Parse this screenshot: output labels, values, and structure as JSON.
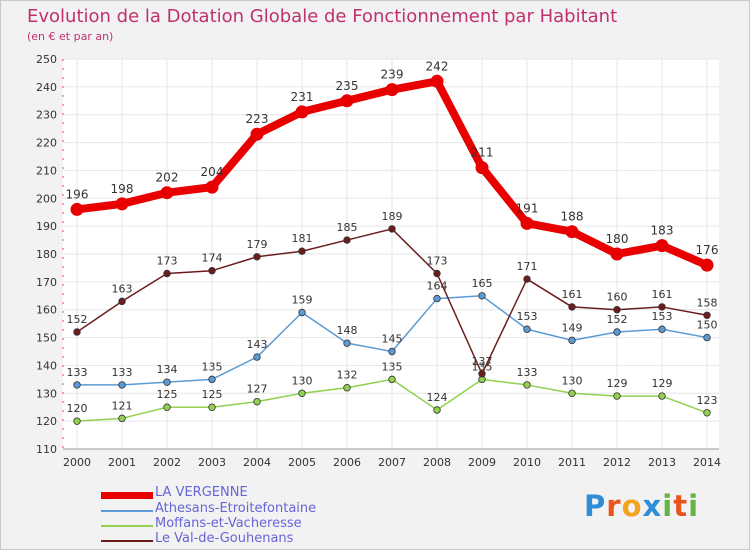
{
  "title": "Evolution de la Dotation Globale de Fonctionnement par Habitant",
  "subtitle": "(en € et par an)",
  "logo": {
    "text": "Proxiti",
    "letters": [
      "P",
      "r",
      "o",
      "x",
      "i",
      "t",
      "i"
    ],
    "colors": [
      "#2e8dd6",
      "#e8561e",
      "#f2a31b",
      "#2e8dd6",
      "#63b445",
      "#e8561e",
      "#63b445"
    ]
  },
  "colors": {
    "background": "#f2f2f2",
    "plot_bg": "#ffffff",
    "grid": "#e6e6e6",
    "title": "#c0306f",
    "axis_text": "#333333",
    "legend_text": "#6565d8"
  },
  "chart_data": {
    "type": "line",
    "title": "Evolution de la Dotation Globale de Fonctionnement par Habitant",
    "subtitle": "(en € et par an)",
    "xlabel": "",
    "ylabel": "",
    "ylim": [
      110,
      250
    ],
    "ystep": 10,
    "grid": true,
    "legend_position": "bottom-left",
    "categories": [
      "2000",
      "2001",
      "2002",
      "2003",
      "2004",
      "2005",
      "2006",
      "2007",
      "2008",
      "2009",
      "2010",
      "2011",
      "2012",
      "2013",
      "2014"
    ],
    "series": [
      {
        "name": "LA VERGENNE",
        "color": "#e80000",
        "bold": true,
        "values": [
          196,
          198,
          202,
          204,
          223,
          231,
          235,
          239,
          242,
          211,
          191,
          188,
          180,
          183,
          176
        ]
      },
      {
        "name": "Athesans-Etroitefontaine",
        "color": "#5b9bd5",
        "bold": false,
        "values": [
          133,
          133,
          134,
          135,
          143,
          159,
          148,
          145,
          164,
          165,
          153,
          149,
          152,
          153,
          150
        ]
      },
      {
        "name": "Moffans-et-Vacheresse",
        "color": "#92d050",
        "bold": false,
        "values": [
          120,
          121,
          125,
          125,
          127,
          130,
          132,
          135,
          124,
          135,
          133,
          130,
          129,
          129,
          123
        ]
      },
      {
        "name": "Le Val-de-Gouhenans",
        "color": "#6b1d1d",
        "bold": false,
        "values": [
          152,
          163,
          173,
          174,
          179,
          181,
          185,
          189,
          173,
          137,
          171,
          161,
          160,
          161,
          158
        ]
      }
    ]
  }
}
